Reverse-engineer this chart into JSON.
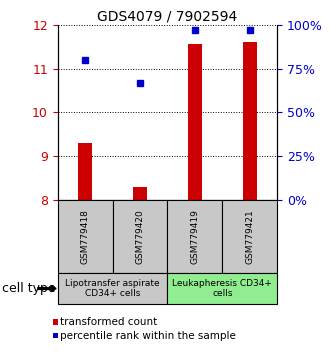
{
  "title": "GDS4079 / 7902594",
  "samples": [
    "GSM779418",
    "GSM779420",
    "GSM779419",
    "GSM779421"
  ],
  "transformed_counts": [
    9.3,
    8.3,
    11.55,
    11.6
  ],
  "percentile_ranks": [
    80,
    67,
    97,
    97
  ],
  "ylim_left": [
    8,
    12
  ],
  "ylim_right": [
    0,
    100
  ],
  "yticks_left": [
    8,
    9,
    10,
    11,
    12
  ],
  "yticks_right": [
    0,
    25,
    50,
    75,
    100
  ],
  "ytick_right_labels": [
    "0%",
    "25%",
    "50%",
    "75%",
    "100%"
  ],
  "bar_color": "#cc0000",
  "dot_color": "#0000cc",
  "bar_width": 0.25,
  "groups": [
    {
      "label": "Lipotransfer aspirate\nCD34+ cells",
      "samples": [
        0,
        1
      ],
      "color": "#c8c8c8"
    },
    {
      "label": "Leukapheresis CD34+\ncells",
      "samples": [
        2,
        3
      ],
      "color": "#90ee90"
    }
  ],
  "sample_box_color": "#c8c8c8",
  "cell_type_label": "cell type",
  "legend_bar_label": "transformed count",
  "legend_dot_label": "percentile rank within the sample",
  "ax_label_color_left": "#cc0000",
  "ax_label_color_right": "#0000cc",
  "title_fontsize": 10,
  "tick_fontsize": 9,
  "sample_fontsize": 6.5,
  "group_fontsize": 6.5,
  "legend_fontsize": 7.5,
  "cell_type_fontsize": 9
}
